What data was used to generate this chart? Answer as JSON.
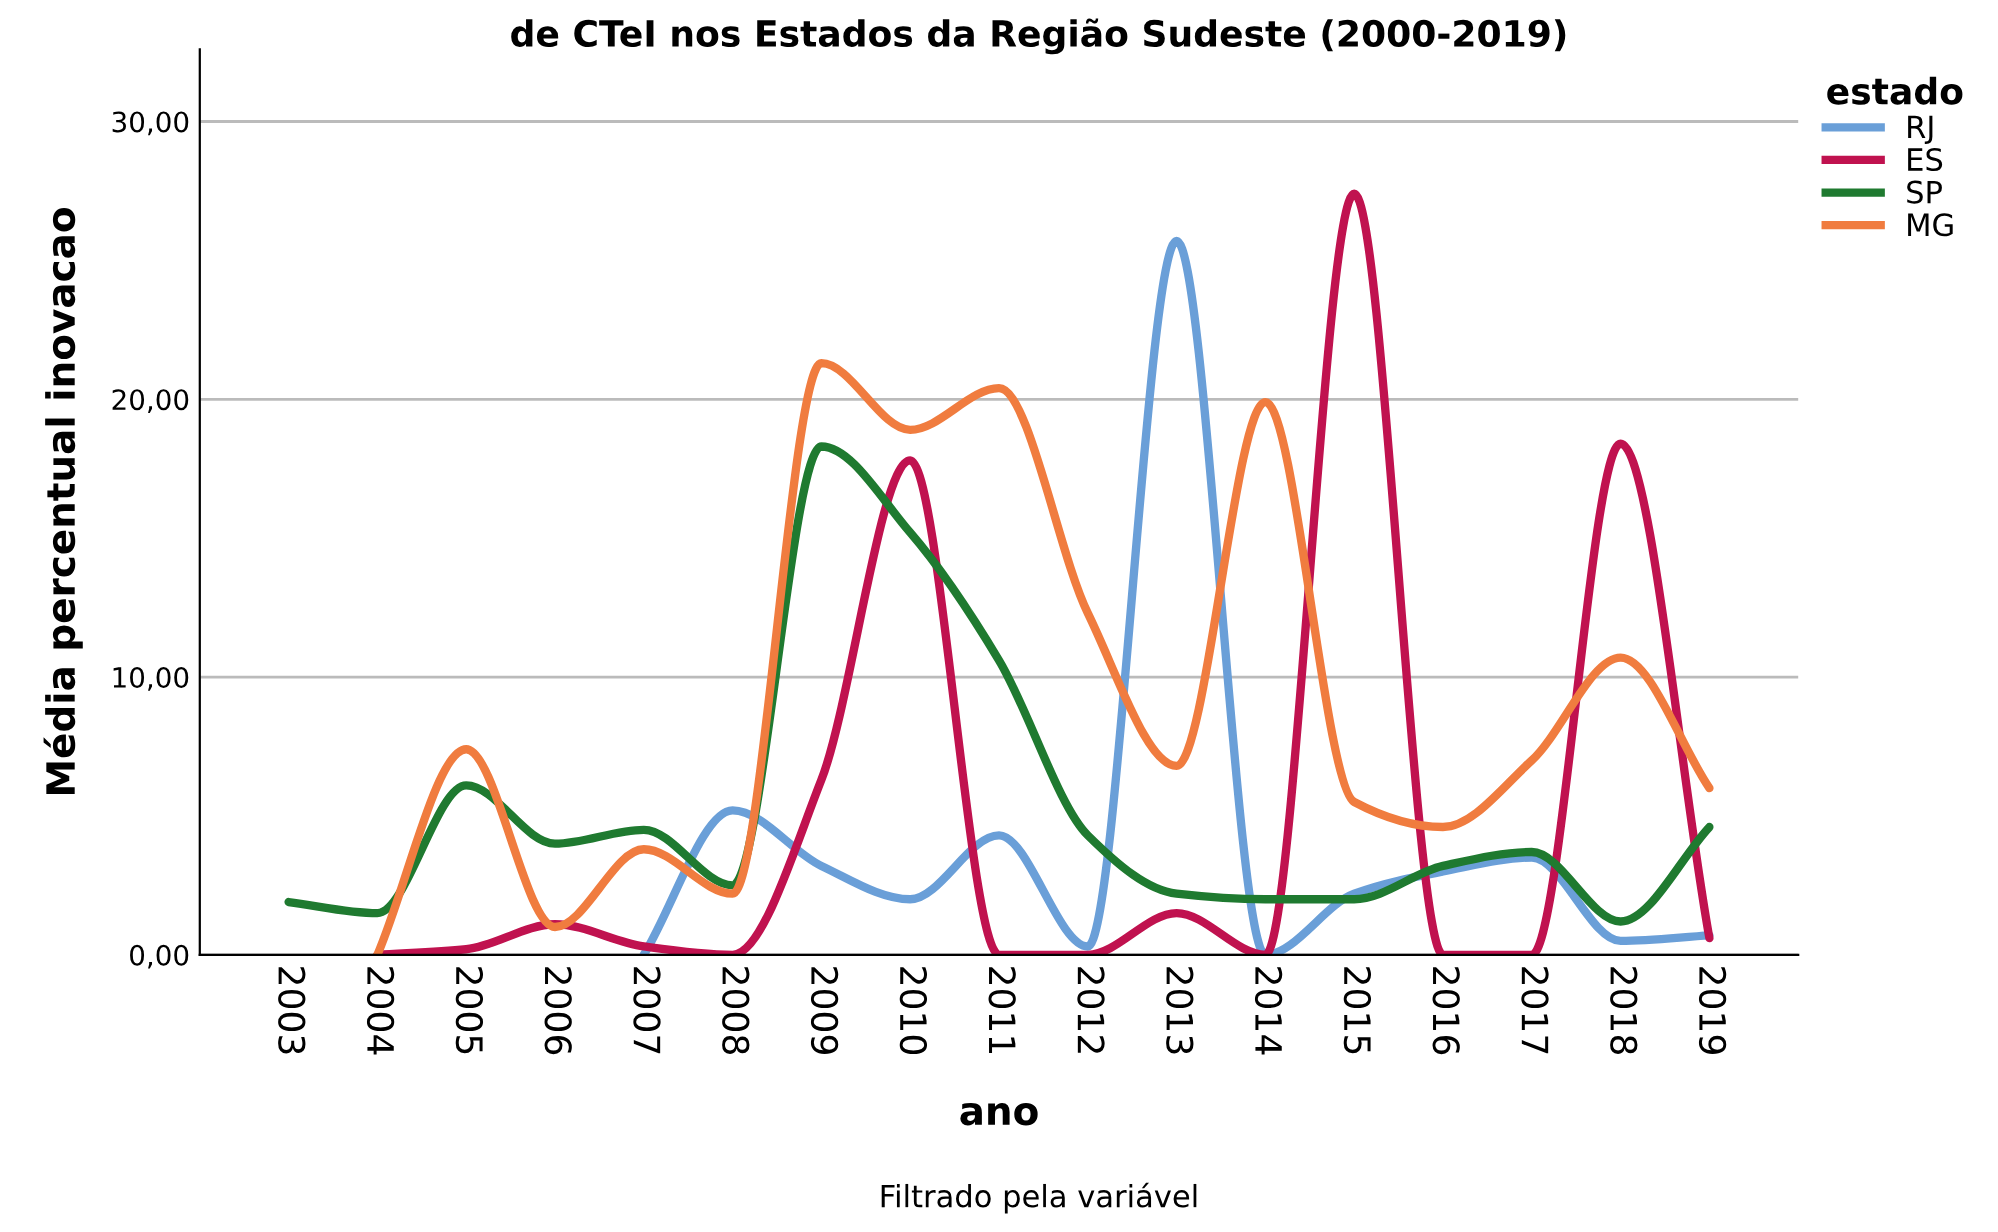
{
  "chart_data": {
    "type": "line",
    "title": "de CTeI nos Estados da Região Sudeste (2000-2019)",
    "xlabel": "ano",
    "ylabel": "Média percentual inovacao",
    "legend_title": "estado",
    "annotations": [
      "Filtrado pela variável"
    ],
    "categories": [
      "2003",
      "2004",
      "2005",
      "2006",
      "2007",
      "2008",
      "2009",
      "2010",
      "2011",
      "2012",
      "2013",
      "2014",
      "2015",
      "2016",
      "2017",
      "2018",
      "2019"
    ],
    "series": [
      {
        "name": "RJ",
        "color": "#6a9fd8",
        "values": [
          null,
          null,
          null,
          null,
          0,
          5.2,
          3.2,
          2.0,
          4.3,
          0.3,
          25.7,
          0,
          2.2,
          3.0,
          3.5,
          0.5,
          0.7
        ]
      },
      {
        "name": "ES",
        "color": "#c0124f",
        "values": [
          null,
          0,
          0.2,
          1.1,
          0.3,
          0,
          6.3,
          17.8,
          0,
          0,
          1.5,
          0,
          27.4,
          0,
          0,
          18.4,
          0.6
        ]
      },
      {
        "name": "SP",
        "color": "#1f7a30",
        "values": [
          1.9,
          1.5,
          6.1,
          4.0,
          4.5,
          2.5,
          18.3,
          15.2,
          10.6,
          4.3,
          2.2,
          2.0,
          2.0,
          3.2,
          3.7,
          1.2,
          4.6
        ]
      },
      {
        "name": "MG",
        "color": "#f07c3f",
        "values": [
          null,
          0,
          7.4,
          1.0,
          3.8,
          2.2,
          21.3,
          18.9,
          20.4,
          12.3,
          6.8,
          19.9,
          5.5,
          4.6,
          7.0,
          10.7,
          6.0
        ]
      }
    ],
    "ylim": [
      0,
      32.6
    ],
    "yticks": [
      {
        "value": 0,
        "label": "0,00"
      },
      {
        "value": 10,
        "label": "10,00"
      },
      {
        "value": 20,
        "label": "20,00"
      },
      {
        "value": 30,
        "label": "30,00"
      }
    ],
    "grid": "y",
    "legend": "top right",
    "marker": "none",
    "line_style": "solid"
  }
}
